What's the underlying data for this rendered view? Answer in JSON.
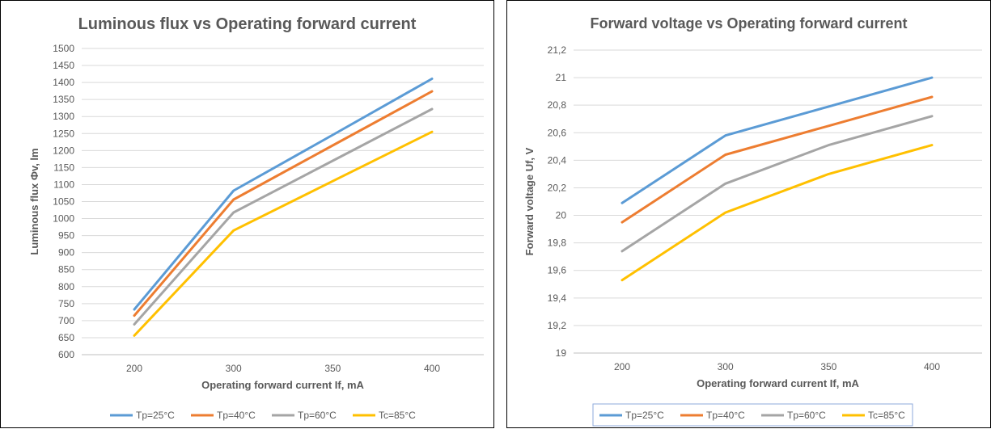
{
  "chart_data": [
    {
      "type": "line",
      "title": "Luminous flux  vs Operating forward current",
      "xlabel": "Operating forward current If, mA",
      "ylabel": "Luminous flux Фv, lm",
      "x": [
        200,
        300,
        350,
        400
      ],
      "x_tick_labels": [
        "200",
        "300",
        "350",
        "400"
      ],
      "ylim": [
        600,
        1500
      ],
      "y_ticks": [
        600,
        650,
        700,
        750,
        800,
        850,
        900,
        950,
        1000,
        1050,
        1100,
        1150,
        1200,
        1250,
        1300,
        1350,
        1400,
        1450,
        1500
      ],
      "y_tick_labels": [
        "600",
        "650",
        "700",
        "750",
        "800",
        "850",
        "900",
        "950",
        "1000",
        "1050",
        "1100",
        "1150",
        "1200",
        "1250",
        "1300",
        "1350",
        "1400",
        "1450",
        "1500"
      ],
      "grid": true,
      "legend_position": "bottom",
      "legend_boxed": false,
      "series": [
        {
          "name": "Tp=25°C",
          "color": "#5B9BD5",
          "values": [
            733,
            1082,
            1246,
            1411
          ]
        },
        {
          "name": "Tp=40°C",
          "color": "#ED7D31",
          "values": [
            715,
            1056,
            1215,
            1374
          ]
        },
        {
          "name": "Tp=60°C",
          "color": "#A5A5A5",
          "values": [
            689,
            1018,
            1170,
            1322
          ]
        },
        {
          "name": "Tc=85°C",
          "color": "#FFC000",
          "values": [
            656,
            965,
            1110,
            1255
          ]
        }
      ]
    },
    {
      "type": "line",
      "title": "Forward voltage vs Operating forward current",
      "xlabel": "Operating forward current If, mA",
      "ylabel": "Forward voltage Uf, V",
      "x": [
        200,
        300,
        350,
        400
      ],
      "x_tick_labels": [
        "200",
        "300",
        "350",
        "400"
      ],
      "ylim": [
        19,
        21.2
      ],
      "y_ticks": [
        19,
        19.2,
        19.4,
        19.6,
        19.8,
        20,
        20.2,
        20.4,
        20.6,
        20.8,
        21,
        21.2
      ],
      "y_tick_labels": [
        "19",
        "19,2",
        "19,4",
        "19,6",
        "19,8",
        "20",
        "20,2",
        "20,4",
        "20,6",
        "20,8",
        "21",
        "21,2"
      ],
      "grid": true,
      "legend_position": "bottom",
      "legend_boxed": true,
      "series": [
        {
          "name": "Tp=25°C",
          "color": "#5B9BD5",
          "values": [
            20.09,
            20.58,
            20.79,
            21.0
          ]
        },
        {
          "name": "Tp=40°C",
          "color": "#ED7D31",
          "values": [
            19.95,
            20.44,
            20.65,
            20.86
          ]
        },
        {
          "name": "Tp=60°C",
          "color": "#A5A5A5",
          "values": [
            19.74,
            20.23,
            20.51,
            20.72
          ]
        },
        {
          "name": "Tc=85°C",
          "color": "#FFC000",
          "values": [
            19.53,
            20.02,
            20.3,
            20.51
          ]
        }
      ]
    }
  ]
}
